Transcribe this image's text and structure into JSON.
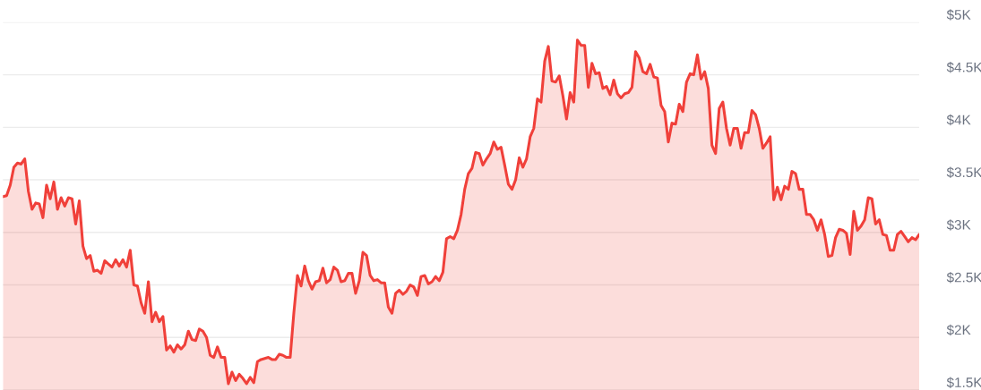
{
  "chart_data": {
    "type": "area",
    "categories": [
      null,
      null,
      null,
      null,
      null,
      null,
      null,
      null,
      null,
      null,
      null,
      null,
      null,
      null,
      null,
      null,
      null,
      null,
      null,
      null,
      null,
      null,
      null,
      null,
      null,
      null,
      null,
      null,
      null,
      null,
      null,
      null,
      null,
      null,
      null,
      null,
      null,
      null,
      null,
      null,
      null,
      null,
      null,
      null,
      null,
      null,
      null,
      null,
      null,
      null,
      null,
      null,
      null,
      null,
      null,
      null,
      null,
      null,
      null,
      null,
      null,
      null,
      null,
      null,
      null,
      null,
      null,
      null,
      null,
      null,
      null,
      null,
      null,
      null,
      null,
      null,
      null,
      null,
      null,
      null,
      null,
      null,
      null,
      null,
      null,
      null,
      null,
      null,
      null,
      null,
      null,
      null,
      null,
      null,
      null,
      null,
      null,
      null,
      null,
      null,
      null,
      null,
      null,
      null,
      null,
      null,
      null,
      null,
      null,
      null,
      null,
      null,
      null,
      null,
      null,
      null,
      null,
      null,
      null,
      null,
      null,
      null,
      null,
      null,
      null,
      null,
      null,
      null,
      null,
      null,
      null,
      null,
      null,
      null,
      null,
      null,
      null,
      null,
      null,
      null,
      null,
      null,
      null,
      null,
      null,
      null,
      null,
      null,
      null,
      null,
      null,
      null,
      null,
      null,
      null,
      null,
      null,
      null,
      null,
      null,
      null,
      null,
      null,
      null,
      null,
      null,
      null,
      null,
      null,
      null,
      null,
      null,
      null,
      null,
      null,
      null,
      null,
      null,
      null,
      null,
      null,
      null,
      null,
      null,
      null,
      null,
      null,
      null,
      null,
      null,
      null,
      null,
      null,
      null,
      null,
      null,
      null,
      null,
      null,
      null,
      null,
      null,
      null,
      null,
      null,
      null,
      null,
      null,
      null,
      null,
      null,
      null,
      null,
      null,
      null,
      null,
      null,
      null,
      null,
      null,
      null,
      null,
      null,
      null,
      null,
      null,
      null,
      null,
      null,
      null,
      null,
      null,
      null,
      null,
      null,
      null,
      null,
      null,
      null,
      null,
      null,
      null,
      null,
      null,
      null,
      null,
      null,
      null,
      null,
      null,
      null,
      null,
      null
    ],
    "series": [
      {
        "color": "#f0403a",
        "values": [
          3340,
          3350,
          3450,
          3620,
          3660,
          3650,
          3700,
          3390,
          3220,
          3280,
          3270,
          3140,
          3450,
          3320,
          3480,
          3220,
          3330,
          3250,
          3330,
          3320,
          3080,
          3300,
          2870,
          2750,
          2780,
          2630,
          2640,
          2610,
          2730,
          2700,
          2670,
          2740,
          2680,
          2740,
          2670,
          2830,
          2500,
          2490,
          2330,
          2230,
          2530,
          2150,
          2240,
          2150,
          2200,
          1880,
          1920,
          1860,
          1930,
          1890,
          1930,
          2060,
          1980,
          1970,
          2080,
          2060,
          2000,
          1830,
          1810,
          1910,
          1810,
          1810,
          1560,
          1670,
          1590,
          1650,
          1610,
          1560,
          1620,
          1570,
          1770,
          1790,
          1800,
          1810,
          1790,
          1790,
          1840,
          1830,
          1810,
          1810,
          2230,
          2590,
          2490,
          2680,
          2540,
          2460,
          2530,
          2540,
          2660,
          2520,
          2550,
          2670,
          2640,
          2530,
          2540,
          2610,
          2610,
          2420,
          2540,
          2810,
          2780,
          2590,
          2540,
          2550,
          2520,
          2520,
          2290,
          2230,
          2420,
          2450,
          2410,
          2440,
          2500,
          2480,
          2400,
          2580,
          2590,
          2510,
          2530,
          2580,
          2540,
          2620,
          2940,
          2960,
          2940,
          3020,
          3170,
          3410,
          3560,
          3610,
          3760,
          3750,
          3640,
          3700,
          3750,
          3860,
          3790,
          3810,
          3640,
          3460,
          3410,
          3500,
          3710,
          3620,
          3700,
          3910,
          3990,
          4270,
          4240,
          4630,
          4770,
          4440,
          4430,
          4490,
          4300,
          4080,
          4330,
          4240,
          4830,
          4780,
          4780,
          4380,
          4610,
          4510,
          4520,
          4370,
          4390,
          4310,
          4450,
          4320,
          4280,
          4320,
          4330,
          4380,
          4720,
          4660,
          4530,
          4510,
          4600,
          4480,
          4470,
          4210,
          4150,
          3860,
          4040,
          4030,
          4220,
          4150,
          4430,
          4510,
          4500,
          4690,
          4460,
          4530,
          4370,
          3830,
          3750,
          4180,
          4240,
          3990,
          3830,
          3990,
          3990,
          3800,
          3950,
          3950,
          4160,
          4120,
          3990,
          3800,
          3850,
          3910,
          3310,
          3430,
          3310,
          3440,
          3410,
          3580,
          3560,
          3410,
          3410,
          3170,
          3170,
          3120,
          3020,
          3120,
          2980,
          2770,
          2780,
          2950,
          3030,
          3020,
          2990,
          2790,
          3200,
          3020,
          3060,
          3120,
          3330,
          3320,
          3080,
          3120,
          2980,
          2970,
          2830,
          2830,
          2980,
          3010,
          2960,
          2910,
          2950,
          2930,
          2980
        ]
      }
    ],
    "ylim": [
      1500,
      5000
    ],
    "yticks": [
      {
        "value": 1500,
        "label": "$1.5K"
      },
      {
        "value": 2000,
        "label": "$2K"
      },
      {
        "value": 2500,
        "label": "$2.5K"
      },
      {
        "value": 3000,
        "label": "$3K"
      },
      {
        "value": 3500,
        "label": "$3.5K"
      },
      {
        "value": 4000,
        "label": "$4K"
      },
      {
        "value": 4500,
        "label": "$4.5K"
      },
      {
        "value": 5000,
        "label": "$5K"
      }
    ],
    "grid": "y",
    "tick_labels": "y"
  }
}
